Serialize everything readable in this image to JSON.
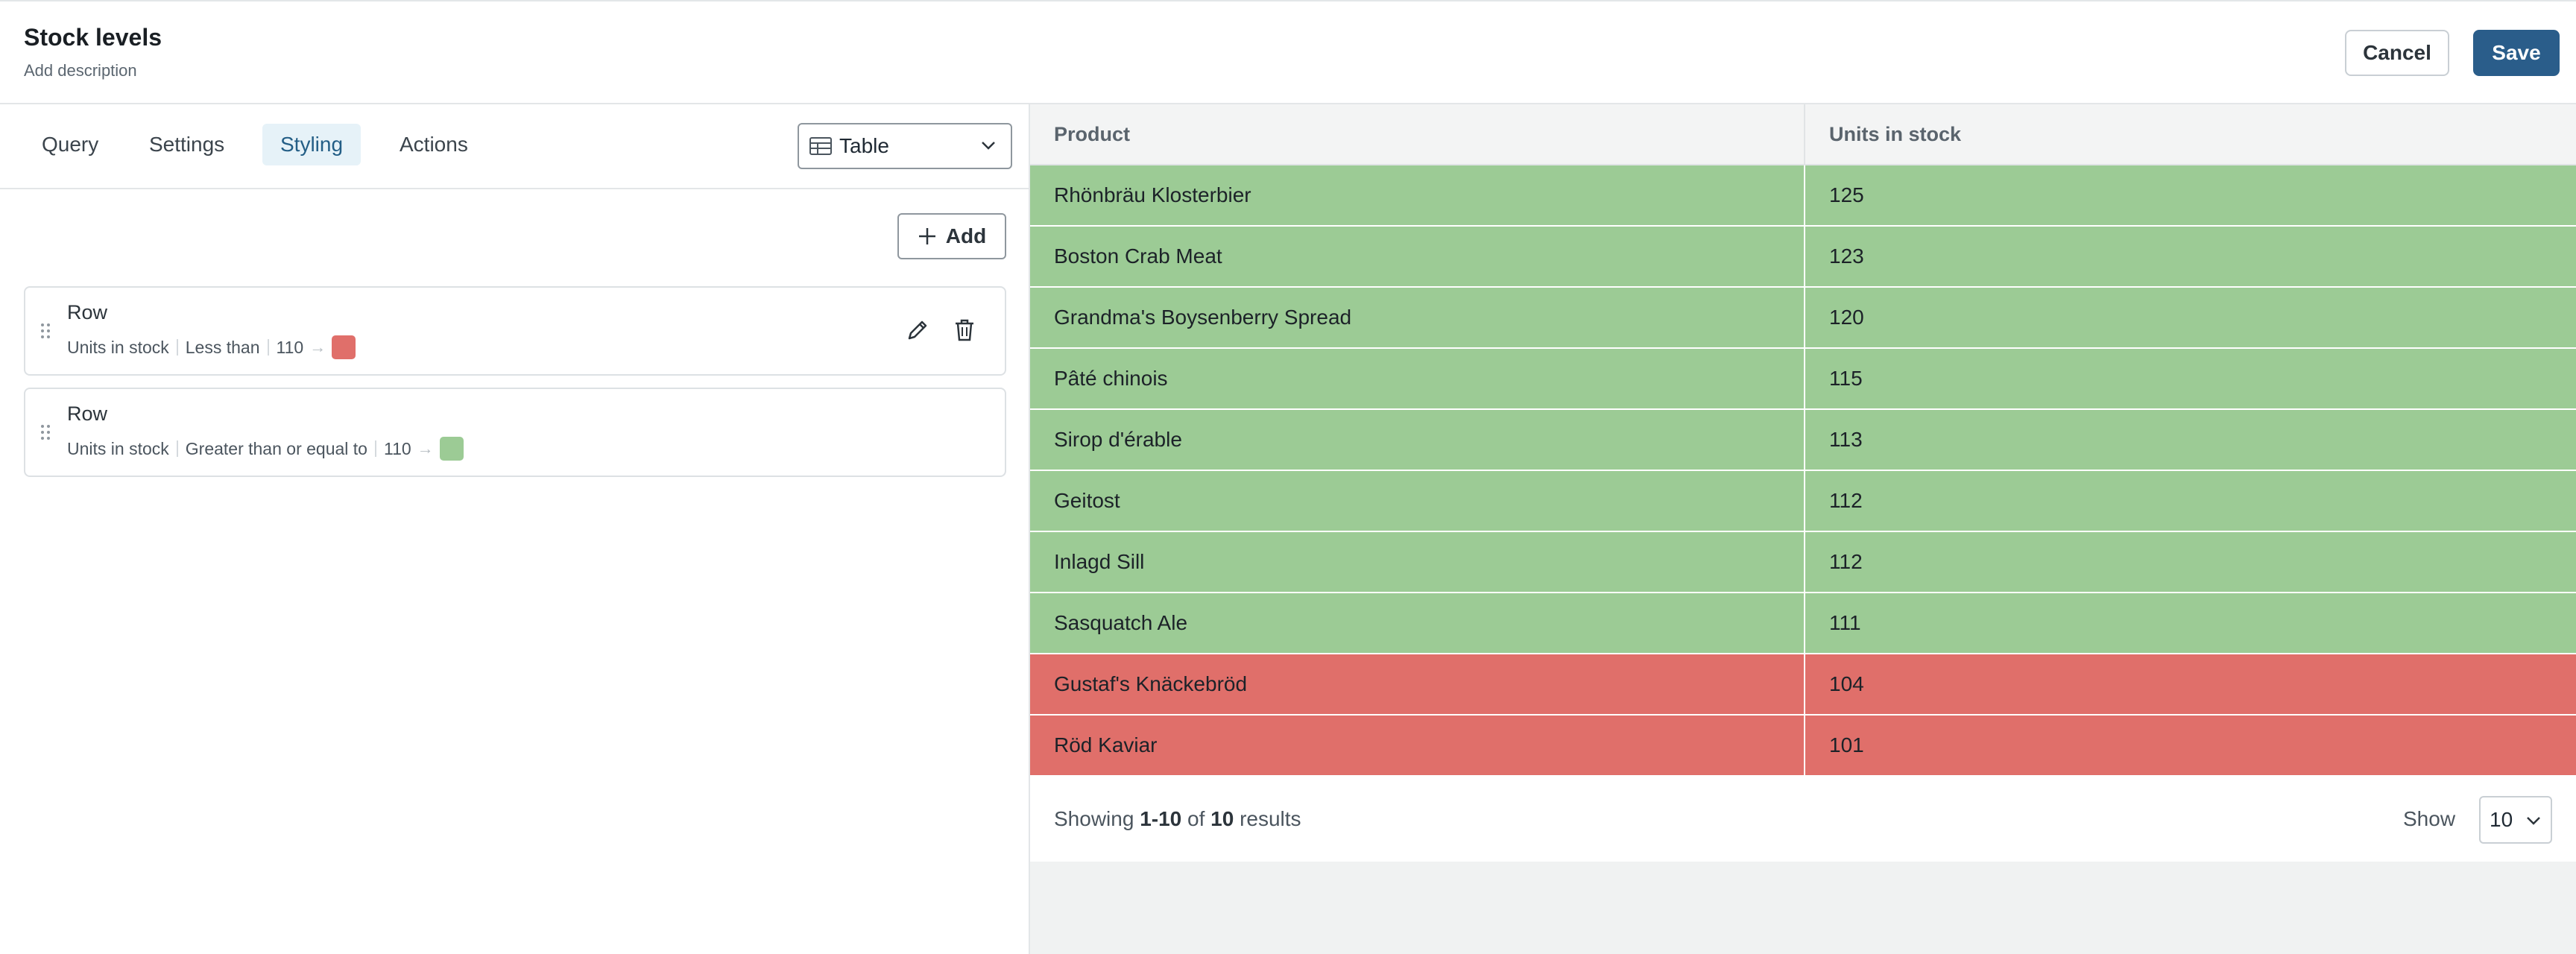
{
  "header": {
    "title": "Stock levels",
    "description": "Add description",
    "cancel_label": "Cancel",
    "save_label": "Save"
  },
  "editor": {
    "tabs": [
      {
        "label": "Query",
        "active": false
      },
      {
        "label": "Settings",
        "active": false
      },
      {
        "label": "Styling",
        "active": true
      },
      {
        "label": "Actions",
        "active": false
      }
    ],
    "visualization": {
      "selected": "Table",
      "icon": "table-icon"
    },
    "add_label": "Add",
    "rules": [
      {
        "title": "Row",
        "column": "Units in stock",
        "operator": "Less than",
        "value": "110",
        "arrow": "→",
        "color": "#e06f6a"
      },
      {
        "title": "Row",
        "column": "Units in stock",
        "operator": "Greater than or equal to",
        "value": "110",
        "arrow": "→",
        "color": "#9ccb95"
      }
    ]
  },
  "table": {
    "columns": [
      "Product",
      "Units in stock"
    ],
    "colors": {
      "high": "#9ccb95",
      "low": "#e06f6a"
    },
    "rows": [
      {
        "product": "Rhönbräu Klosterbier",
        "units": "125",
        "status": "high"
      },
      {
        "product": "Boston Crab Meat",
        "units": "123",
        "status": "high"
      },
      {
        "product": "Grandma's Boysenberry Spread",
        "units": "120",
        "status": "high"
      },
      {
        "product": "Pâté chinois",
        "units": "115",
        "status": "high"
      },
      {
        "product": "Sirop d'érable",
        "units": "113",
        "status": "high"
      },
      {
        "product": "Geitost",
        "units": "112",
        "status": "high"
      },
      {
        "product": "Inlagd Sill",
        "units": "112",
        "status": "high"
      },
      {
        "product": "Sasquatch Ale",
        "units": "111",
        "status": "high"
      },
      {
        "product": "Gustaf's Knäckebröd",
        "units": "104",
        "status": "low"
      },
      {
        "product": "Röd Kaviar",
        "units": "101",
        "status": "low"
      }
    ],
    "footer": {
      "showing_prefix": "Showing ",
      "range": "1-10",
      "of_text": " of ",
      "total": "10",
      "suffix": " results",
      "show_label": "Show",
      "page_size": "10"
    }
  }
}
